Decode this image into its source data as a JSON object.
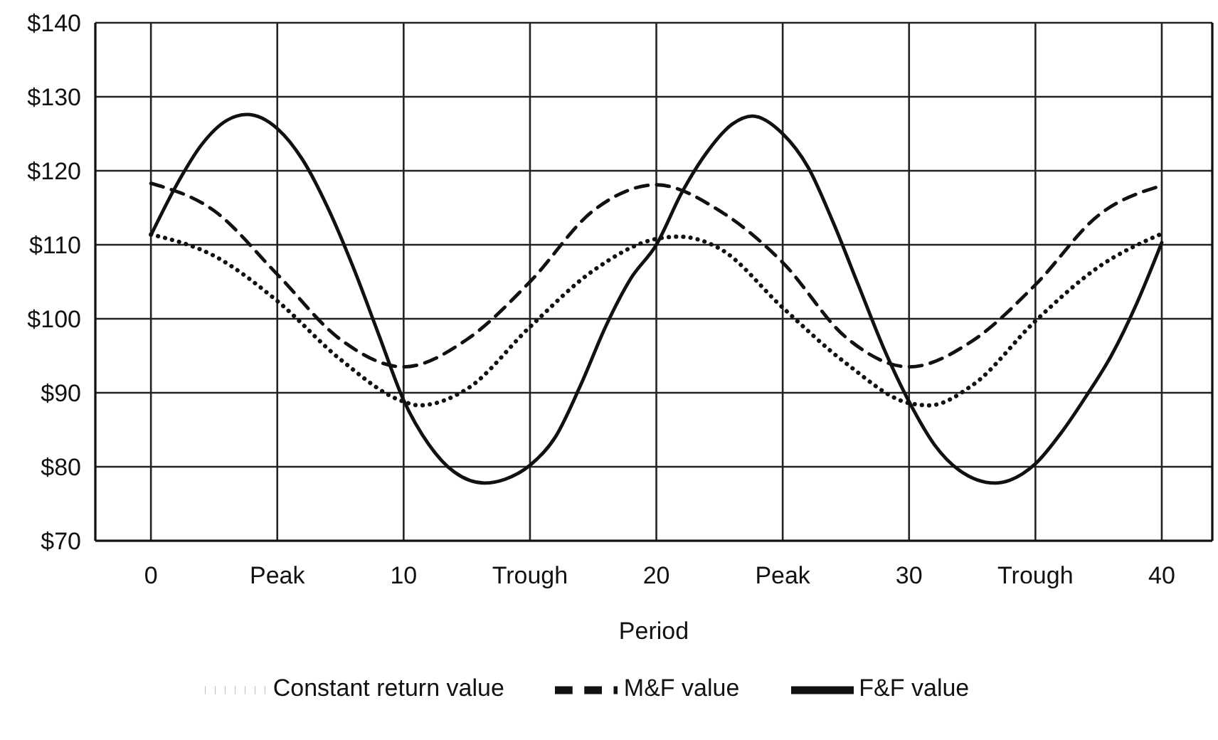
{
  "chart_data": {
    "type": "line",
    "xlabel": "Period",
    "xlim": [
      -2.2,
      42
    ],
    "xticks": [
      0,
      {
        "value": 5,
        "label": "Peak"
      },
      10,
      {
        "value": 15,
        "label": "Trough"
      },
      20,
      {
        "value": 25,
        "label": "Peak"
      },
      30,
      {
        "value": 35,
        "label": "Trough"
      },
      40
    ],
    "ylim": [
      70,
      140
    ],
    "yticks": [
      {
        "value": 70,
        "label": "$70"
      },
      {
        "value": 80,
        "label": "$80"
      },
      {
        "value": 90,
        "label": "$90"
      },
      {
        "value": 100,
        "label": "$100"
      },
      {
        "value": 110,
        "label": "$110"
      },
      {
        "value": 120,
        "label": "$120"
      },
      {
        "value": 130,
        "label": "$130"
      },
      {
        "value": 140,
        "label": "$140"
      }
    ],
    "grid": true,
    "legend": "bottom",
    "marker": "none",
    "series": [
      {
        "name": "Constant return value",
        "color": "#111111",
        "line_style": "dotted",
        "x": [
          0,
          2.5,
          5,
          7.5,
          10,
          10.6,
          12.5,
          15,
          17.5,
          20,
          20.9,
          22.5,
          25,
          27.5,
          30,
          30.8,
          32.5,
          35,
          37.5,
          40
        ],
        "values": [
          111.4,
          108.5,
          102.4,
          94.5,
          88.8,
          88.3,
          90.5,
          98.9,
          106.5,
          110.8,
          111.1,
          109.5,
          101.5,
          94,
          88.6,
          88.3,
          91,
          99.7,
          107,
          111.5
        ]
      },
      {
        "name": "M&F value",
        "color": "#111111",
        "line_style": "dashed",
        "x": [
          0,
          2.5,
          5,
          7.5,
          10,
          12.5,
          15,
          17.5,
          20,
          22.5,
          25,
          27.5,
          30,
          32.5,
          35,
          37.5,
          40
        ],
        "values": [
          118.3,
          114.6,
          106,
          97.2,
          93.5,
          97.2,
          105,
          114.6,
          118.1,
          114.6,
          107.6,
          97.5,
          93.5,
          97,
          104.6,
          114,
          118
        ]
      },
      {
        "name": "F&F value",
        "color": "#111111",
        "line_style": "solid",
        "x": [
          0,
          1,
          2,
          3,
          3.8,
          5,
          6,
          7,
          8,
          9,
          10,
          11,
          12,
          13.2,
          14,
          15,
          16,
          17,
          18,
          19,
          20,
          21,
          22,
          23,
          23.8,
          25,
          26,
          27,
          28,
          29,
          30,
          31,
          32,
          33.4,
          34,
          35,
          36,
          37,
          38,
          39,
          40
        ],
        "values": [
          111.3,
          118,
          123.5,
          126.8,
          127.6,
          125.7,
          121.5,
          115,
          107,
          98,
          89,
          83,
          79.3,
          77.8,
          78.3,
          80.2,
          84,
          91,
          99,
          105.5,
          110,
          117,
          122.5,
          126.3,
          127.4,
          125,
          120.5,
          113,
          104.5,
          96,
          88.8,
          83,
          79.5,
          77.8,
          78.2,
          80.4,
          84.5,
          89.5,
          95,
          102,
          110.3
        ]
      }
    ]
  }
}
